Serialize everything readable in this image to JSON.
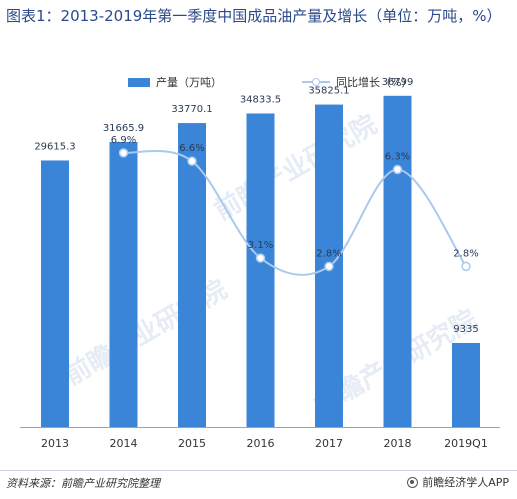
{
  "title": "图表1：2013-2019年第一季度中国成品油产量及增长（单位：万吨，%）",
  "legend": {
    "bar_label": "产量（万吨）",
    "line_label": "同比增长（%）"
  },
  "watermark": "前瞻产业研究院",
  "footer": {
    "source": "资料来源：前瞻产业研究院整理",
    "brand": "前瞻经济学人APP"
  },
  "colors": {
    "bar": "#3a85d8",
    "line": "#a9c9ef",
    "title": "#2b4a8a"
  },
  "chart_data": {
    "type": "bar",
    "categories": [
      "2013",
      "2014",
      "2015",
      "2016",
      "2017",
      "2018",
      "2019Q1"
    ],
    "series": [
      {
        "name": "产量（万吨）",
        "type": "bar",
        "values": [
          29615.3,
          31665.9,
          33770.1,
          34833.5,
          35825.1,
          36799,
          9335
        ],
        "labels": [
          "29615.3",
          "31665.9",
          "33770.1",
          "34833.5",
          "35825.1",
          "36799",
          "9335"
        ]
      },
      {
        "name": "同比增长（%）",
        "type": "line",
        "smooth": true,
        "values": [
          null,
          6.9,
          6.6,
          3.1,
          2.8,
          6.3,
          2.8
        ],
        "labels": [
          "",
          "6.9%",
          "6.6%",
          "3.1%",
          "2.8%",
          "6.3%",
          "2.8%"
        ]
      }
    ],
    "ylim_bar": [
      0,
      40000
    ],
    "ylim_line": [
      -3,
      10
    ],
    "grid": false,
    "legend_position": "top"
  }
}
